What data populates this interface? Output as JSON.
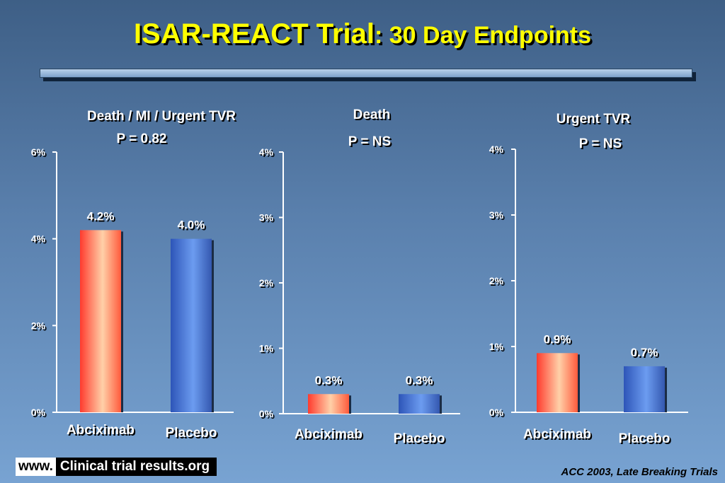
{
  "title": {
    "main": "ISAR-REACT Trial",
    "sub": ": 30 Day Endpoints"
  },
  "colors": {
    "abciximab": "#ff6b5a",
    "placebo": "#4d78d6",
    "title": "#ffff00",
    "background": "#5a80ad"
  },
  "chart_data": [
    {
      "type": "bar",
      "title": "Death / MI / Urgent TVR",
      "subtitle": "P = 0.82",
      "categories": [
        "Abciximab",
        "Placebo"
      ],
      "values": [
        4.2,
        4.0
      ],
      "value_labels": [
        "4.2%",
        "4.0%"
      ],
      "yticks": [
        "0%",
        "2%",
        "4%",
        "6%"
      ],
      "ylim": [
        0,
        6
      ],
      "xlabel": "",
      "ylabel": "",
      "grid": false
    },
    {
      "type": "bar",
      "title": "Death",
      "subtitle": "P = NS",
      "categories": [
        "Abciximab",
        "Placebo"
      ],
      "values": [
        0.3,
        0.3
      ],
      "value_labels": [
        "0.3%",
        "0.3%"
      ],
      "yticks": [
        "0%",
        "1%",
        "2%",
        "3%",
        "4%"
      ],
      "ylim": [
        0,
        4
      ],
      "xlabel": "",
      "ylabel": "",
      "grid": false
    },
    {
      "type": "bar",
      "title": "Urgent TVR",
      "subtitle": "P = NS",
      "categories": [
        "Abciximab",
        "Placebo"
      ],
      "values": [
        0.9,
        0.7
      ],
      "value_labels": [
        "0.9%",
        "0.7%"
      ],
      "yticks": [
        "0%",
        "1%",
        "2%",
        "3%",
        "4%"
      ],
      "ylim": [
        0,
        4
      ],
      "xlabel": "",
      "ylabel": "",
      "grid": false
    }
  ],
  "footer": {
    "logo_www": "www.",
    "logo_site": "Clinical trial results.org",
    "source": "ACC 2003, Late Breaking Trials"
  }
}
